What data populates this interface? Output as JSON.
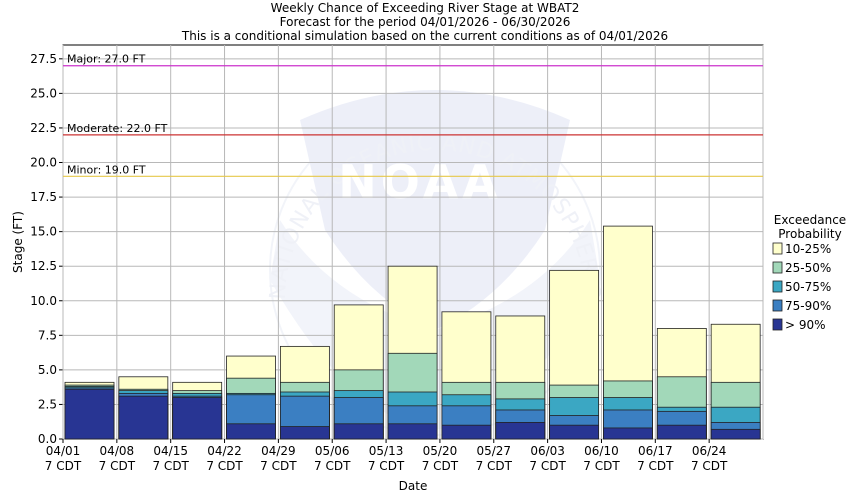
{
  "chart_data": {
    "type": "bar",
    "title_lines": [
      "Weekly Chance of Exceeding River Stage at WBAT2",
      "Forecast for the period 04/01/2026 - 06/30/2026",
      "This is a conditional simulation based on the current conditions as of 04/01/2026"
    ],
    "xlabel": "Date",
    "ylabel": "Stage (FT)",
    "ylim": [
      0,
      28.5
    ],
    "yticks": [
      "0.0",
      "2.5",
      "5.0",
      "7.5",
      "10.0",
      "12.5",
      "15.0",
      "17.5",
      "20.0",
      "22.5",
      "25.0",
      "27.5"
    ],
    "categories": [
      "04/01",
      "04/08",
      "04/15",
      "04/22",
      "04/29",
      "05/06",
      "05/13",
      "05/20",
      "05/27",
      "06/03",
      "06/10",
      "06/17",
      "06/24"
    ],
    "category_sublabel": "7 CDT",
    "grid": true,
    "legend_title": "Exceedance\nProbability",
    "legend_position": "right",
    "series": [
      {
        "name": "> 90%",
        "color": "#283593",
        "values": [
          3.6,
          3.1,
          3.0,
          1.1,
          0.9,
          1.1,
          1.1,
          1.0,
          1.2,
          1.0,
          0.8,
          1.0,
          0.7
        ]
      },
      {
        "name": "75-90%",
        "color": "#3b7fc2",
        "values": [
          3.7,
          3.3,
          3.1,
          3.2,
          3.1,
          3.0,
          2.4,
          2.4,
          2.1,
          1.7,
          2.1,
          2.0,
          1.2
        ]
      },
      {
        "name": "50-75%",
        "color": "#3ba7c3",
        "values": [
          3.8,
          3.5,
          3.3,
          3.3,
          3.4,
          3.5,
          3.4,
          3.2,
          2.9,
          3.0,
          3.0,
          2.3,
          2.3
        ]
      },
      {
        "name": "25-50%",
        "color": "#a2d8b9",
        "values": [
          3.9,
          3.6,
          3.5,
          4.4,
          4.1,
          5.0,
          6.2,
          4.1,
          4.1,
          3.9,
          4.2,
          4.5,
          4.1
        ]
      },
      {
        "name": "10-25%",
        "color": "#ffffcc",
        "values": [
          4.1,
          4.5,
          4.1,
          6.0,
          6.7,
          9.7,
          12.5,
          9.2,
          8.9,
          12.2,
          15.4,
          8.0,
          8.3
        ]
      }
    ],
    "thresholds": [
      {
        "label": "Major: 27.0 FT",
        "value": 27.0,
        "color": "#cc33cc"
      },
      {
        "label": "Moderate: 22.0 FT",
        "value": 22.0,
        "color": "#cc3333"
      },
      {
        "label": "Minor: 19.0 FT",
        "value": 19.0,
        "color": "#e6c84a"
      }
    ]
  },
  "watermark": {
    "text_ring": "NATIONAL OCEANIC AND ATMOSPHERIC ADMINISTRATION",
    "logo_text": "NOAA"
  }
}
